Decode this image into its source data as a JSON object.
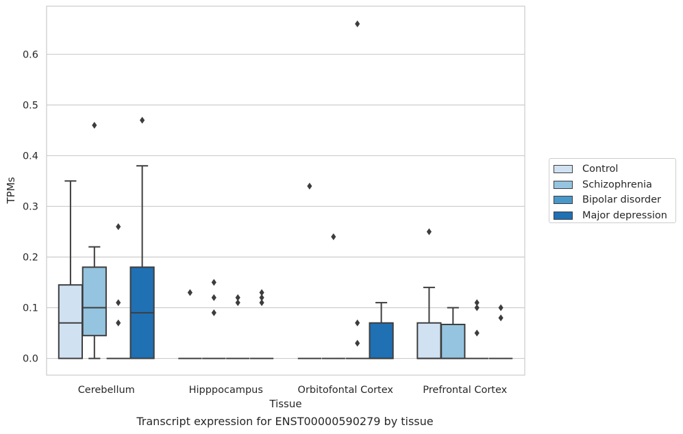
{
  "caption": "Transcript expression for ENST00000590279 by tissue",
  "chart_data": {
    "type": "box",
    "xlabel": "Tissue",
    "ylabel": "TPMs",
    "ylim": [
      -0.033,
      0.695
    ],
    "yticks": [
      0.0,
      0.1,
      0.2,
      0.3,
      0.4,
      0.5,
      0.6
    ],
    "ytick_labels": [
      "0.0",
      "0.1",
      "0.2",
      "0.3",
      "0.4",
      "0.5",
      "0.6"
    ],
    "grid": "horizontal",
    "legend_position": "right",
    "categories": [
      "Cerebellum",
      "Hipppocampus",
      "Orbitofontal Cortex",
      "Prefrontal Cortex"
    ],
    "series": [
      {
        "name": "Control",
        "color": "#d0e1f2",
        "boxes": [
          {
            "q1": 0.0,
            "median": 0.07,
            "q3": 0.145,
            "whisker_low": 0.0,
            "whisker_high": 0.35,
            "outliers": []
          },
          {
            "q1": 0.0,
            "median": 0.0,
            "q3": 0.0,
            "whisker_low": 0.0,
            "whisker_high": 0.0,
            "outliers": [
              0.13
            ]
          },
          {
            "q1": 0.0,
            "median": 0.0,
            "q3": 0.0,
            "whisker_low": 0.0,
            "whisker_high": 0.0,
            "outliers": [
              0.34
            ]
          },
          {
            "q1": 0.0,
            "median": 0.0,
            "q3": 0.07,
            "whisker_low": 0.0,
            "whisker_high": 0.14,
            "outliers": [
              0.25
            ]
          }
        ]
      },
      {
        "name": "Schizophrenia",
        "color": "#94c4df",
        "boxes": [
          {
            "q1": 0.045,
            "median": 0.1,
            "q3": 0.18,
            "whisker_low": 0.0,
            "whisker_high": 0.22,
            "outliers": [
              0.46
            ]
          },
          {
            "q1": 0.0,
            "median": 0.0,
            "q3": 0.0,
            "whisker_low": 0.0,
            "whisker_high": 0.0,
            "outliers": [
              0.15,
              0.12,
              0.09
            ]
          },
          {
            "q1": 0.0,
            "median": 0.0,
            "q3": 0.0,
            "whisker_low": 0.0,
            "whisker_high": 0.0,
            "outliers": [
              0.24
            ]
          },
          {
            "q1": 0.0,
            "median": 0.0,
            "q3": 0.067,
            "whisker_low": 0.0,
            "whisker_high": 0.1,
            "outliers": []
          }
        ]
      },
      {
        "name": "Bipolar disorder",
        "color": "#4a98c9",
        "boxes": [
          {
            "q1": 0.0,
            "median": 0.0,
            "q3": 0.0,
            "whisker_low": 0.0,
            "whisker_high": 0.0,
            "outliers": [
              0.26,
              0.11,
              0.07
            ]
          },
          {
            "q1": 0.0,
            "median": 0.0,
            "q3": 0.0,
            "whisker_low": 0.0,
            "whisker_high": 0.0,
            "outliers": [
              0.12,
              0.11
            ]
          },
          {
            "q1": 0.0,
            "median": 0.0,
            "q3": 0.0,
            "whisker_low": 0.0,
            "whisker_high": 0.0,
            "outliers": [
              0.66,
              0.07,
              0.03
            ]
          },
          {
            "q1": 0.0,
            "median": 0.0,
            "q3": 0.0,
            "whisker_low": 0.0,
            "whisker_high": 0.0,
            "outliers": [
              0.11,
              0.1,
              0.05
            ]
          }
        ]
      },
      {
        "name": "Major depression",
        "color": "#2070b4",
        "boxes": [
          {
            "q1": 0.0,
            "median": 0.09,
            "q3": 0.18,
            "whisker_low": 0.0,
            "whisker_high": 0.38,
            "outliers": [
              0.47
            ]
          },
          {
            "q1": 0.0,
            "median": 0.0,
            "q3": 0.0,
            "whisker_low": 0.0,
            "whisker_high": 0.0,
            "outliers": [
              0.13,
              0.12,
              0.11
            ]
          },
          {
            "q1": 0.0,
            "median": 0.0,
            "q3": 0.07,
            "whisker_low": 0.0,
            "whisker_high": 0.11,
            "outliers": []
          },
          {
            "q1": 0.0,
            "median": 0.0,
            "q3": 0.0,
            "whisker_low": 0.0,
            "whisker_high": 0.0,
            "outliers": [
              0.1,
              0.08
            ]
          }
        ]
      }
    ]
  }
}
